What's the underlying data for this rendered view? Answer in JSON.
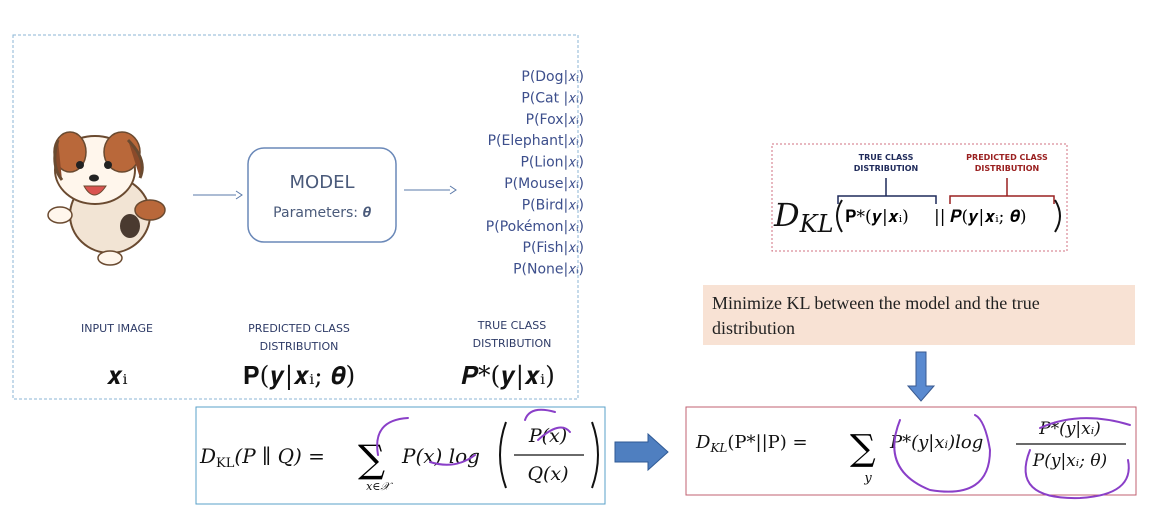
{
  "input": {
    "label": "INPUT IMAGE",
    "symbol": "𝒙ᵢ"
  },
  "model": {
    "title": "MODEL",
    "params": "Parameters: 𝜽"
  },
  "classes": [
    "P(Dog|𝑥ᵢ)",
    "P(Cat |𝑥ᵢ)",
    "P(Fox|𝑥ᵢ)",
    "P(Elephant|𝑥ᵢ)",
    "P(Lion|𝑥ᵢ)",
    "P(Mouse|𝑥ᵢ)",
    "P(Bird|𝑥ᵢ)",
    "P(Pokémon|𝑥ᵢ)",
    "P(Fish|𝑥ᵢ)",
    "P(None|𝑥ᵢ)"
  ],
  "predicted": {
    "label": [
      "PREDICTED CLASS",
      "DISTRIBUTION"
    ],
    "symbol": "𝐏(𝒚|𝒙ᵢ; 𝜽)"
  },
  "true_dist": {
    "label": [
      "TRUE CLASS",
      "DISTRIBUTION"
    ],
    "symbol": "𝑷*(𝒚|𝒙ᵢ)"
  },
  "kl_top": {
    "true_label": [
      "TRUE CLASS",
      "DISTRIBUTION"
    ],
    "pred_label": [
      "PREDICTED CLASS",
      "DISTRIBUTION"
    ],
    "d": "D",
    "sub": "KL",
    "left": "𝐏*(𝒚|𝒙ᵢ)",
    "sep": "||",
    "right": "𝑷(𝒚|𝒙ᵢ; 𝜽)"
  },
  "note": [
    "Minimize KL between the model and the true",
    "distribution"
  ],
  "kl_formula": {
    "d": "D",
    "sub": "KL",
    "args": "(P ∥ Q) =",
    "sum": "∑",
    "under": "x∈𝒳",
    "term": "P(x) log",
    "num": "P(x)",
    "den": "Q(x)"
  },
  "kl_right": {
    "d": "D",
    "sub": "KL",
    "args": "(P*||P) =",
    "sum": "∑",
    "under": "y",
    "term": "P*(y|xᵢ)log",
    "num": "P*(y|xᵢ)",
    "den": "P(y|xᵢ; θ)"
  }
}
